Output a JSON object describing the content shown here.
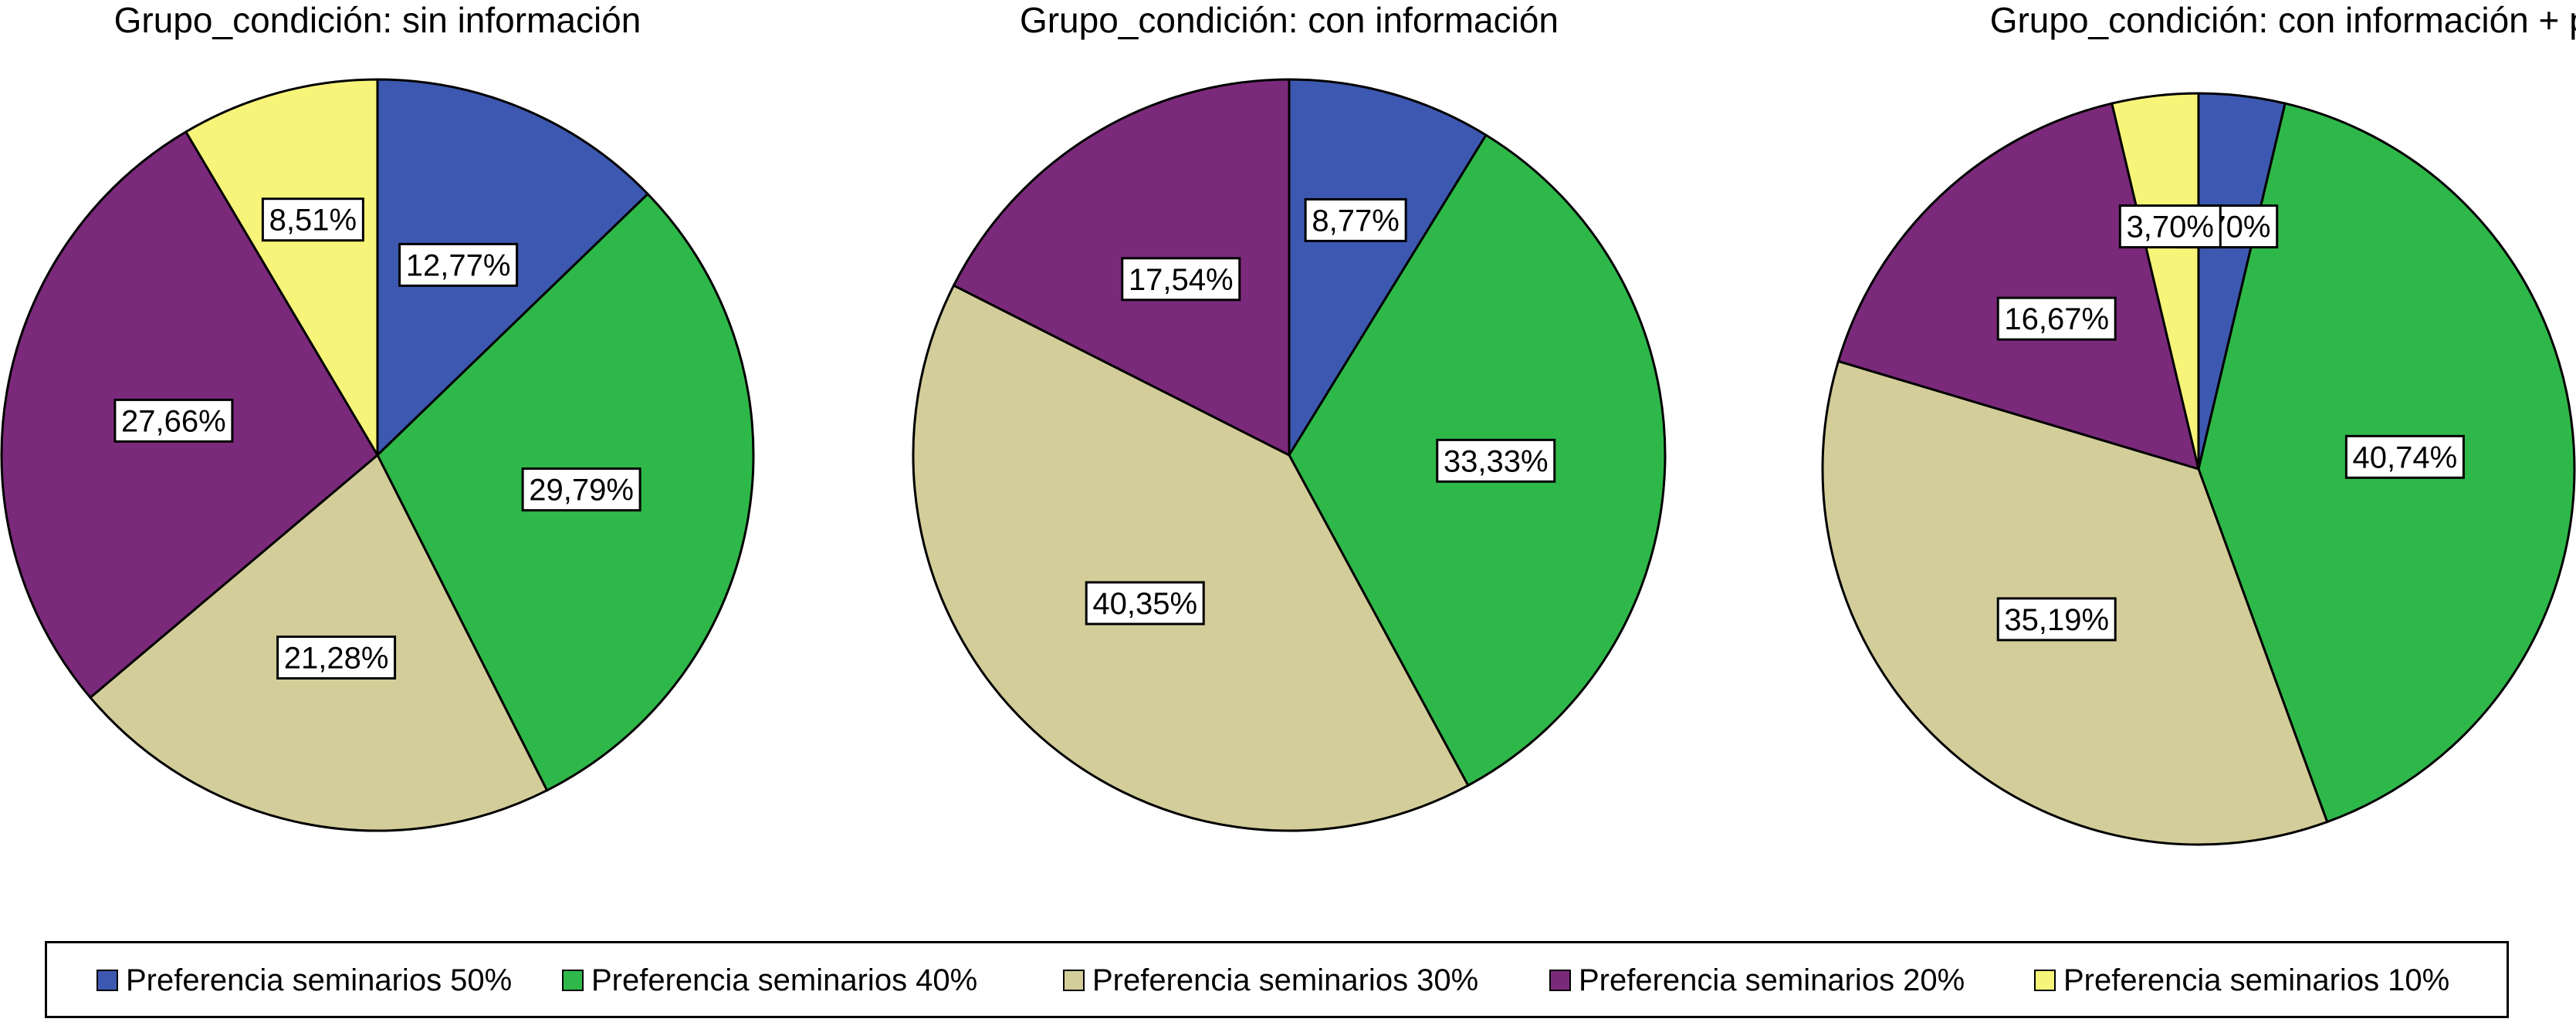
{
  "colors": {
    "s50": "#3d58b0",
    "s40": "#2fb84a",
    "s30": "#d3cd9a",
    "s20": "#7b2a7b",
    "s10": "#f7f47a"
  },
  "chart_data": [
    {
      "type": "pie",
      "title": "Grupo_condición: sin información",
      "slices": [
        {
          "key": "s50",
          "value": 12.77,
          "label": "12,77%"
        },
        {
          "key": "s40",
          "value": 29.79,
          "label": "29,79%"
        },
        {
          "key": "s30",
          "value": 21.28,
          "label": "21,28%"
        },
        {
          "key": "s20",
          "value": 27.66,
          "label": "27,66%"
        },
        {
          "key": "s10",
          "value": 8.51,
          "label": "8,51%"
        }
      ]
    },
    {
      "type": "pie",
      "title": "Grupo_condición: con información",
      "slices": [
        {
          "key": "s50",
          "value": 8.77,
          "label": "8,77%"
        },
        {
          "key": "s40",
          "value": 33.33,
          "label": "33,33%"
        },
        {
          "key": "s30",
          "value": 40.35,
          "label": "40,35%"
        },
        {
          "key": "s20",
          "value": 17.54,
          "label": "17,54%"
        }
      ]
    },
    {
      "type": "pie",
      "title": "Grupo_condición: con información + parciales",
      "slices": [
        {
          "key": "s50",
          "value": 3.7,
          "label": "3,70%"
        },
        {
          "key": "s40",
          "value": 40.74,
          "label": "40,74%"
        },
        {
          "key": "s30",
          "value": 35.19,
          "label": "35,19%"
        },
        {
          "key": "s20",
          "value": 16.67,
          "label": "16,67%"
        },
        {
          "key": "s10",
          "value": 3.7,
          "label": "3,70%"
        }
      ]
    }
  ],
  "legend": {
    "items": [
      {
        "key": "s50",
        "label": "Preferencia seminarios 50%"
      },
      {
        "key": "s40",
        "label": "Preferencia seminarios 40%"
      },
      {
        "key": "s30",
        "label": "Preferencia seminarios 30%"
      },
      {
        "key": "s20",
        "label": "Preferencia seminarios 20%"
      },
      {
        "key": "s10",
        "label": "Preferencia seminarios 10%"
      }
    ]
  }
}
